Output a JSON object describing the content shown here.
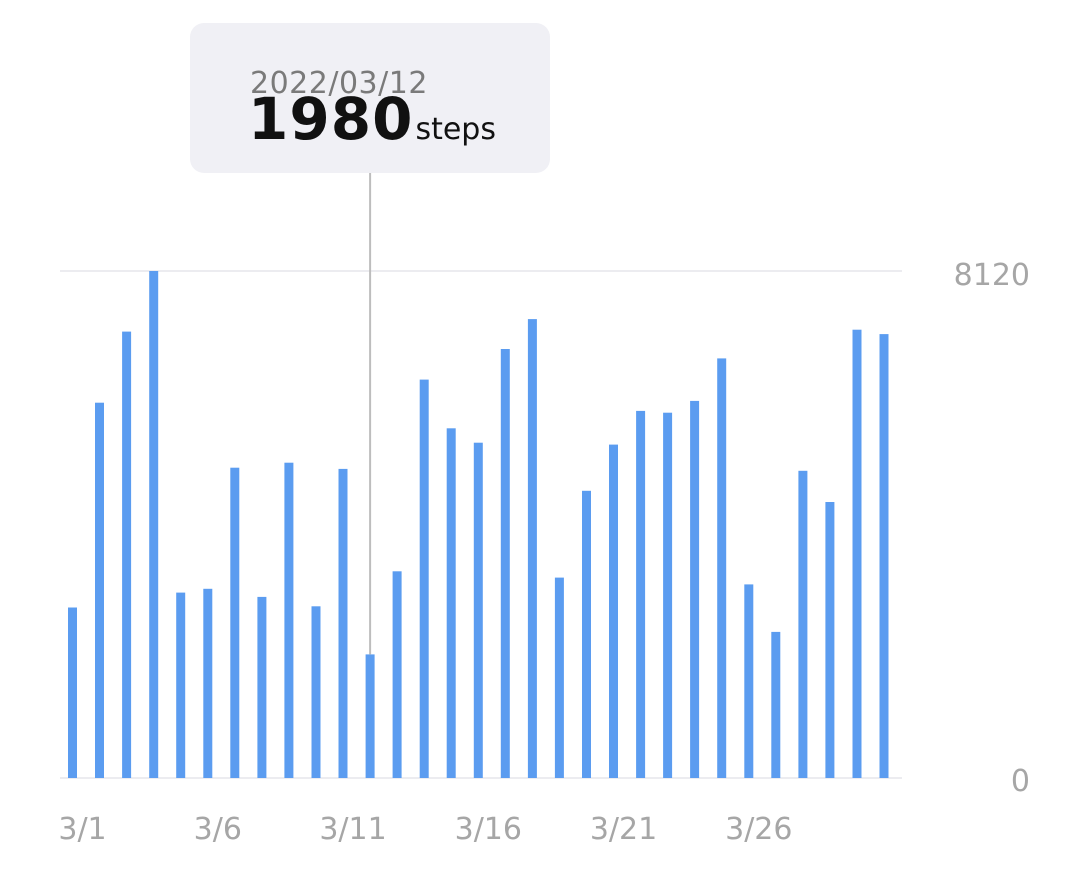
{
  "tooltip": {
    "date": "2022/03/12",
    "value": "1980",
    "unit": "steps"
  },
  "colors": {
    "bar": "#5b9cf0",
    "grid": "#ececf0",
    "tick_text": "#a6a6a6",
    "tooltip_bg": "#f0f0f5",
    "tooltip_line": "#bdbdbd"
  },
  "chart_data": {
    "type": "bar",
    "title": "",
    "xlabel": "",
    "ylabel": "",
    "ylim": [
      0,
      8120
    ],
    "y_ticks": [
      "8120",
      "0"
    ],
    "x_tick_labels": [
      "3/1",
      "3/6",
      "3/11",
      "3/16",
      "3/21",
      "3/26"
    ],
    "categories": [
      "3/1",
      "3/2",
      "3/3",
      "3/4",
      "3/5",
      "3/6",
      "3/7",
      "3/8",
      "3/9",
      "3/10",
      "3/11",
      "3/12",
      "3/13",
      "3/14",
      "3/15",
      "3/16",
      "3/17",
      "3/18",
      "3/19",
      "3/20",
      "3/21",
      "3/22",
      "3/23",
      "3/24",
      "3/25",
      "3/26",
      "3/27",
      "3/28",
      "3/29",
      "3/30",
      "3/31"
    ],
    "values": [
      2730,
      6010,
      7150,
      8120,
      2970,
      3030,
      4970,
      2900,
      5050,
      2750,
      4950,
      1980,
      3310,
      6380,
      5600,
      5370,
      6870,
      7350,
      3210,
      4600,
      5340,
      5880,
      5850,
      6040,
      6720,
      3100,
      2340,
      4920,
      4420,
      7180,
      7110
    ],
    "selected_index": 11
  }
}
